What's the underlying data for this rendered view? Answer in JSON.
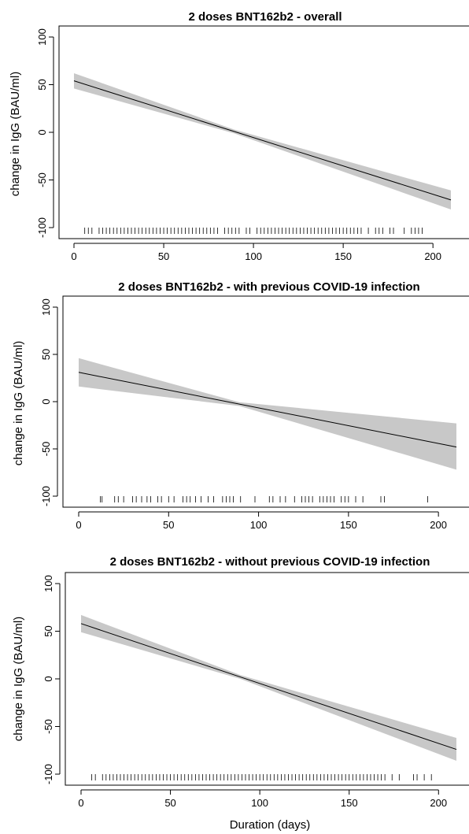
{
  "chart_data": [
    {
      "type": "line",
      "title": "2 doses BNT162b2 - overall",
      "xlabel": "",
      "ylabel": "change in IgG (BAU/ml)",
      "xlim": [
        0,
        210
      ],
      "ylim": [
        -100,
        100
      ],
      "x_ticks": [
        "0",
        "50",
        "100",
        "150",
        "200"
      ],
      "y_ticks": [
        "-100",
        "-50",
        "0",
        "50",
        "100"
      ],
      "series": [
        {
          "x": [
            0,
            210
          ],
          "y": [
            54,
            -71
          ],
          "lower": [
            46,
            -81
          ],
          "upper": [
            62,
            -61
          ]
        }
      ],
      "rug_x": [
        6,
        8,
        10,
        14,
        16,
        18,
        20,
        22,
        24,
        26,
        28,
        30,
        32,
        34,
        36,
        38,
        40,
        42,
        44,
        46,
        48,
        50,
        52,
        54,
        56,
        58,
        60,
        62,
        64,
        66,
        68,
        70,
        72,
        74,
        76,
        78,
        80,
        84,
        86,
        88,
        90,
        92,
        96,
        98,
        102,
        104,
        106,
        108,
        110,
        112,
        114,
        116,
        118,
        120,
        122,
        124,
        126,
        128,
        130,
        132,
        134,
        136,
        138,
        140,
        142,
        144,
        146,
        148,
        150,
        152,
        154,
        156,
        158,
        160,
        164,
        168,
        170,
        172,
        176,
        178,
        184,
        188,
        190,
        192,
        194
      ],
      "grid": false
    },
    {
      "type": "line",
      "title": "2 doses BNT162b2 - with previous COVID-19 infection",
      "xlabel": "",
      "ylabel": "change in IgG (BAU/ml)",
      "xlim": [
        0,
        210
      ],
      "ylim": [
        -100,
        100
      ],
      "x_ticks": [
        "0",
        "50",
        "100",
        "150",
        "200"
      ],
      "y_ticks": [
        "-100",
        "-50",
        "0",
        "50",
        "100"
      ],
      "series": [
        {
          "x": [
            0,
            210
          ],
          "y": [
            31,
            -48
          ],
          "lower": [
            16,
            -72
          ],
          "upper": [
            46,
            -23
          ]
        }
      ],
      "rug_x": [
        12,
        13,
        20,
        22,
        25,
        30,
        32,
        35,
        38,
        40,
        44,
        46,
        50,
        53,
        58,
        60,
        62,
        65,
        68,
        72,
        75,
        80,
        82,
        84,
        86,
        90,
        98,
        106,
        108,
        112,
        115,
        120,
        124,
        126,
        128,
        130,
        134,
        136,
        138,
        140,
        142,
        146,
        148,
        150,
        154,
        158,
        168,
        170,
        194
      ],
      "grid": false
    },
    {
      "type": "line",
      "title": "2 doses BNT162b2 - without previous COVID-19 infection",
      "xlabel": "Duration (days)",
      "ylabel": "change in IgG (BAU/ml)",
      "xlim": [
        0,
        210
      ],
      "ylim": [
        -100,
        100
      ],
      "x_ticks": [
        "0",
        "50",
        "100",
        "150",
        "200"
      ],
      "y_ticks": [
        "-100",
        "-50",
        "0",
        "50",
        "100"
      ],
      "series": [
        {
          "x": [
            0,
            210
          ],
          "y": [
            58,
            -74
          ],
          "lower": [
            49,
            -86
          ],
          "upper": [
            67,
            -62
          ]
        }
      ],
      "rug_x": [
        6,
        8,
        12,
        14,
        16,
        18,
        20,
        22,
        24,
        26,
        28,
        30,
        32,
        34,
        36,
        38,
        40,
        42,
        44,
        46,
        48,
        50,
        52,
        54,
        56,
        58,
        60,
        62,
        64,
        66,
        68,
        70,
        72,
        74,
        76,
        78,
        80,
        82,
        84,
        86,
        88,
        90,
        92,
        94,
        96,
        98,
        100,
        102,
        104,
        106,
        108,
        110,
        112,
        114,
        116,
        118,
        120,
        122,
        124,
        126,
        128,
        130,
        132,
        134,
        136,
        138,
        140,
        142,
        144,
        146,
        148,
        150,
        152,
        154,
        156,
        158,
        160,
        162,
        164,
        166,
        168,
        170,
        174,
        178,
        186,
        188,
        192,
        196
      ],
      "grid": false
    }
  ]
}
